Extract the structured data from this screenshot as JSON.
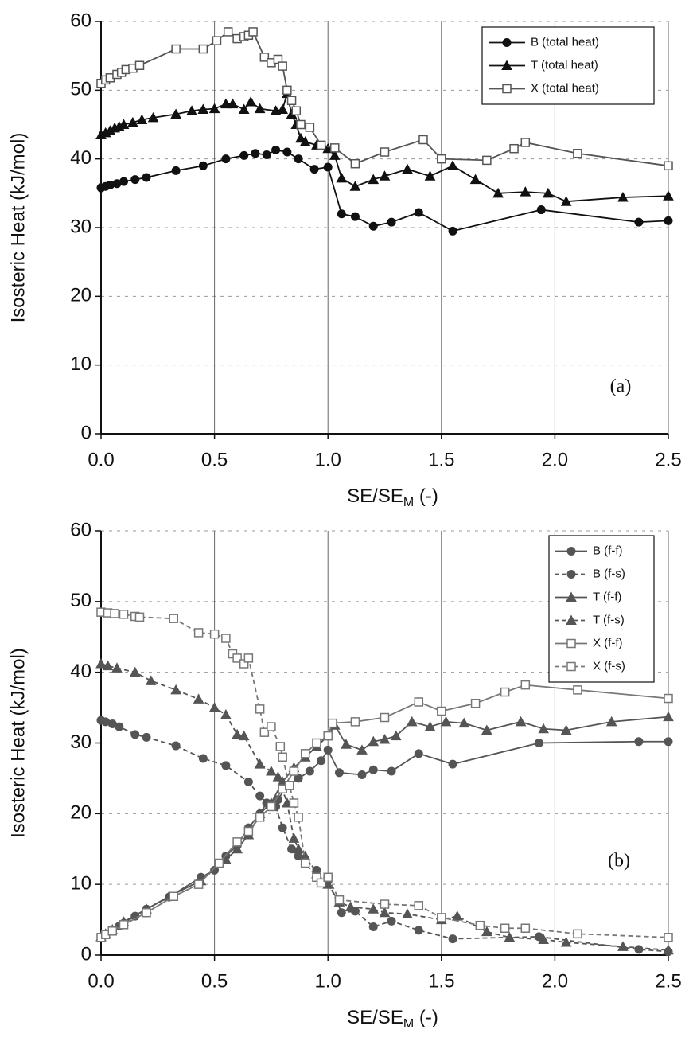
{
  "chart_data": [
    {
      "type": "line",
      "annotation": "(a)",
      "ylabel": "Isosteric Heat (kJ/mol)",
      "xlabel": [
        "SE/SE",
        "M",
        " (-)"
      ],
      "xlim": [
        0,
        2.5
      ],
      "ylim": [
        0,
        60
      ],
      "xticks": [
        {
          "value": 0,
          "label": "0.0"
        },
        0.5,
        {
          "value": 1,
          "label": "1.0"
        },
        1.5,
        {
          "value": 2,
          "label": "2.0"
        },
        2.5
      ],
      "yticks": [
        0,
        10,
        20,
        30,
        40,
        50,
        60
      ],
      "grid": true,
      "legend": "upper right",
      "series": [
        {
          "name": "B (total heat)",
          "color": "#111111",
          "marker": "circle",
          "linestyle": "solid",
          "x": [
            0.0,
            0.02,
            0.04,
            0.07,
            0.1,
            0.15,
            0.2,
            0.33,
            0.45,
            0.55,
            0.63,
            0.68,
            0.73,
            0.77,
            0.82,
            0.87,
            0.94,
            1.0,
            1.06,
            1.12,
            1.2,
            1.28,
            1.4,
            1.55,
            1.94,
            2.37,
            2.5
          ],
          "values": [
            35.8,
            36.0,
            36.2,
            36.4,
            36.7,
            37.0,
            37.3,
            38.3,
            39.0,
            40.0,
            40.5,
            40.8,
            40.6,
            41.3,
            41.0,
            40.0,
            38.5,
            38.8,
            32.0,
            31.6,
            30.2,
            30.8,
            32.2,
            29.5,
            32.6,
            30.8,
            31.0
          ]
        },
        {
          "name": "T (total heat)",
          "color": "#111111",
          "marker": "triangle",
          "linestyle": "solid",
          "x": [
            0.0,
            0.02,
            0.04,
            0.06,
            0.08,
            0.1,
            0.14,
            0.18,
            0.23,
            0.33,
            0.4,
            0.45,
            0.5,
            0.55,
            0.58,
            0.63,
            0.66,
            0.7,
            0.77,
            0.8,
            0.82,
            0.84,
            0.86,
            0.88,
            0.9,
            0.95,
            1.0,
            1.03,
            1.06,
            1.12,
            1.2,
            1.25,
            1.35,
            1.45,
            1.55,
            1.65,
            1.75,
            1.87,
            1.97,
            2.05,
            2.3,
            2.5
          ],
          "values": [
            43.5,
            43.8,
            44.1,
            44.5,
            44.7,
            45,
            45.3,
            45.7,
            46,
            46.5,
            47,
            47.2,
            47.3,
            48,
            48,
            47.2,
            48.3,
            47.3,
            47.0,
            47.2,
            49.5,
            46.5,
            45,
            43,
            42.5,
            42,
            41.5,
            40.5,
            37.2,
            36,
            37,
            37.5,
            38.5,
            37.5,
            39,
            37,
            35,
            35.2,
            35,
            33.8,
            34.4,
            34.6
          ]
        },
        {
          "name": "X (total heat)",
          "color": "#555555",
          "marker": "square",
          "linestyle": "solid",
          "x": [
            0.0,
            0.02,
            0.04,
            0.07,
            0.09,
            0.11,
            0.14,
            0.17,
            0.33,
            0.45,
            0.51,
            0.56,
            0.6,
            0.63,
            0.65,
            0.67,
            0.72,
            0.75,
            0.78,
            0.8,
            0.82,
            0.84,
            0.86,
            0.88,
            0.92,
            0.97,
            1.03,
            1.12,
            1.25,
            1.42,
            1.5,
            1.7,
            1.82,
            1.87,
            2.1,
            2.5
          ],
          "values": [
            51,
            51.5,
            51.8,
            52.3,
            52.6,
            53,
            53.2,
            53.6,
            56,
            56,
            57.2,
            58.5,
            57.5,
            57.8,
            58,
            58.5,
            54.8,
            54,
            54.5,
            53.5,
            50,
            48.5,
            47,
            45,
            44.6,
            42,
            41.6,
            39.3,
            41,
            42.8,
            40,
            39.8,
            41.5,
            42.4,
            40.8,
            39
          ]
        }
      ]
    },
    {
      "type": "line",
      "annotation": "(b)",
      "ylabel": "Isosteric Heat (kJ/mol)",
      "xlabel": [
        "SE/SE",
        "M",
        " (-)"
      ],
      "xlim": [
        0,
        2.5
      ],
      "ylim": [
        0,
        60
      ],
      "xticks": [
        {
          "value": 0,
          "label": "0.0"
        },
        0.5,
        {
          "value": 1,
          "label": "1.0"
        },
        1.5,
        {
          "value": 2,
          "label": "2.0"
        },
        2.5
      ],
      "yticks": [
        0,
        10,
        20,
        30,
        40,
        50,
        60
      ],
      "grid": true,
      "legend": "upper right",
      "series": [
        {
          "name": "B (f-f)",
          "color": "#555555",
          "marker": "circle",
          "linestyle": "solid",
          "x": [
            0,
            0.02,
            0.05,
            0.08,
            0.1,
            0.15,
            0.2,
            0.3,
            0.44,
            0.5,
            0.55,
            0.6,
            0.65,
            0.7,
            0.73,
            0.78,
            0.82,
            0.87,
            0.92,
            0.97,
            1.0,
            1.05,
            1.15,
            1.2,
            1.28,
            1.4,
            1.55,
            1.93,
            2.37,
            2.5
          ],
          "values": [
            2.5,
            2.9,
            3.5,
            4.1,
            4.5,
            5.5,
            6.5,
            8.2,
            11,
            12,
            14,
            15.5,
            18,
            20,
            21.5,
            22,
            24,
            25,
            26,
            27.5,
            29,
            25.8,
            25.5,
            26.2,
            26,
            28.5,
            27,
            30,
            30.2,
            30.2
          ]
        },
        {
          "name": "B (f-s)",
          "color": "#555555",
          "marker": "circle",
          "linestyle": "dashed",
          "x": [
            0,
            0.02,
            0.05,
            0.08,
            0.15,
            0.2,
            0.33,
            0.45,
            0.55,
            0.65,
            0.7,
            0.73,
            0.77,
            0.8,
            0.84,
            0.87,
            0.9,
            0.95,
            1.0,
            1.06,
            1.12,
            1.2,
            1.28,
            1.4,
            1.55,
            1.93,
            2.37,
            2.5
          ],
          "values": [
            33.2,
            33,
            32.7,
            32.3,
            31.2,
            30.8,
            29.6,
            27.8,
            26.8,
            24.5,
            22.5,
            21.5,
            21,
            18,
            15,
            14,
            13.5,
            12,
            10.5,
            6,
            6.2,
            4,
            4.8,
            3.5,
            2.3,
            2.6,
            0.8,
            0.5
          ]
        },
        {
          "name": "T (f-f)",
          "color": "#555555",
          "marker": "triangle",
          "linestyle": "solid",
          "x": [
            0,
            0.02,
            0.05,
            0.1,
            0.2,
            0.3,
            0.44,
            0.55,
            0.6,
            0.65,
            0.7,
            0.75,
            0.8,
            0.85,
            0.9,
            0.95,
            1.0,
            1.03,
            1.08,
            1.15,
            1.2,
            1.25,
            1.3,
            1.37,
            1.45,
            1.52,
            1.6,
            1.7,
            1.85,
            1.95,
            2.05,
            2.25,
            2.5
          ],
          "values": [
            2.6,
            3,
            3.6,
            4.7,
            6.5,
            8.3,
            10.5,
            13.5,
            15,
            17,
            20,
            21.5,
            24.5,
            26.5,
            28,
            29.5,
            31,
            32.5,
            29.8,
            29,
            30.2,
            30.5,
            31,
            33,
            32.3,
            33,
            32.8,
            31.8,
            33,
            32,
            31.8,
            33,
            33.7
          ]
        },
        {
          "name": "T (f-s)",
          "color": "#555555",
          "marker": "triangle",
          "linestyle": "dashed",
          "x": [
            0,
            0.03,
            0.07,
            0.15,
            0.22,
            0.33,
            0.43,
            0.5,
            0.55,
            0.6,
            0.63,
            0.7,
            0.75,
            0.78,
            0.82,
            0.85,
            0.87,
            0.9,
            0.95,
            1.0,
            1.05,
            1.1,
            1.2,
            1.25,
            1.35,
            1.5,
            1.57,
            1.7,
            1.8,
            1.95,
            2.05,
            2.3,
            2.5
          ],
          "values": [
            41.2,
            40.9,
            40.6,
            40,
            38.8,
            37.5,
            36.2,
            35,
            34,
            31.2,
            31,
            27,
            26,
            25.2,
            21.5,
            16.5,
            15,
            14,
            11.5,
            10,
            7.5,
            6.8,
            6.5,
            6,
            5.8,
            5,
            5.5,
            3.3,
            2.5,
            2.2,
            1.8,
            1.2,
            0.7
          ]
        },
        {
          "name": "X (f-f)",
          "color": "#777777",
          "marker": "square",
          "linestyle": "solid",
          "x": [
            0,
            0.02,
            0.05,
            0.1,
            0.2,
            0.32,
            0.43,
            0.52,
            0.6,
            0.65,
            0.7,
            0.75,
            0.8,
            0.85,
            0.9,
            0.95,
            1.0,
            1.02,
            1.12,
            1.25,
            1.4,
            1.5,
            1.65,
            1.78,
            1.87,
            2.1,
            2.5
          ],
          "values": [
            2.5,
            2.9,
            3.4,
            4.3,
            6,
            8.3,
            10,
            13,
            16,
            17.5,
            19.5,
            21,
            23.5,
            26,
            28.5,
            30,
            31,
            32.8,
            33,
            33.6,
            35.8,
            34.5,
            35.6,
            37.2,
            38.2,
            37.5,
            36.3
          ]
        },
        {
          "name": "X (f-s)",
          "color": "#777777",
          "marker": "square",
          "linestyle": "dashed",
          "x": [
            0,
            0.03,
            0.06,
            0.1,
            0.15,
            0.17,
            0.32,
            0.43,
            0.5,
            0.55,
            0.58,
            0.6,
            0.63,
            0.65,
            0.7,
            0.72,
            0.75,
            0.79,
            0.8,
            0.83,
            0.85,
            0.87,
            0.9,
            0.95,
            0.97,
            1.0,
            1.05,
            1.25,
            1.4,
            1.5,
            1.67,
            1.78,
            1.87,
            2.1,
            2.5
          ],
          "values": [
            48.5,
            48.4,
            48.3,
            48.2,
            47.9,
            47.8,
            47.6,
            45.6,
            45.4,
            44.8,
            42.6,
            42,
            41.2,
            42,
            34.8,
            31.5,
            32.3,
            29.5,
            28,
            24,
            21.5,
            19.5,
            13,
            11,
            10.2,
            11,
            7.8,
            7.2,
            7,
            5.3,
            4.2,
            3.8,
            3.8,
            3,
            2.5
          ]
        }
      ]
    }
  ]
}
